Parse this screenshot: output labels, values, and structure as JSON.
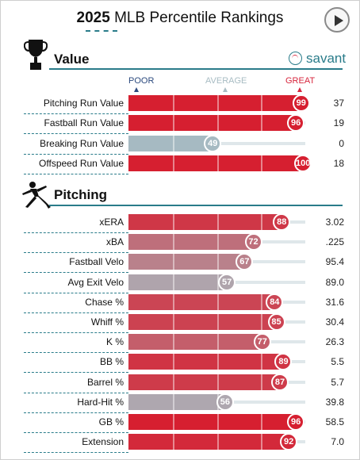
{
  "header": {
    "year": "2025",
    "title": "MLB Percentile Rankings"
  },
  "scale": {
    "poor": "POOR",
    "average": "AVERAGE",
    "great": "GREAT",
    "poor_color": "#2c4a7e",
    "average_color": "#a8bcc3",
    "great_color": "#d7263d"
  },
  "brand": {
    "name": "savant"
  },
  "value_section": {
    "title": "Value",
    "rows": [
      {
        "label": "Pitching Run Value",
        "percentile": 99,
        "value": "37"
      },
      {
        "label": "Fastball Run Value",
        "percentile": 96,
        "value": "19"
      },
      {
        "label": "Breaking Run Value",
        "percentile": 49,
        "value": "0"
      },
      {
        "label": "Offspeed Run Value",
        "percentile": 100,
        "value": "18"
      }
    ]
  },
  "pitching_section": {
    "title": "Pitching",
    "rows": [
      {
        "label": "xERA",
        "percentile": 88,
        "value": "3.02"
      },
      {
        "label": "xBA",
        "percentile": 72,
        "value": ".225"
      },
      {
        "label": "Fastball Velo",
        "percentile": 67,
        "value": "95.4"
      },
      {
        "label": "Avg Exit Velo",
        "percentile": 57,
        "value": "89.0"
      },
      {
        "label": "Chase %",
        "percentile": 84,
        "value": "31.6"
      },
      {
        "label": "Whiff %",
        "percentile": 85,
        "value": "30.4"
      },
      {
        "label": "K %",
        "percentile": 77,
        "value": "26.3"
      },
      {
        "label": "BB %",
        "percentile": 89,
        "value": "5.5"
      },
      {
        "label": "Barrel %",
        "percentile": 87,
        "value": "5.7"
      },
      {
        "label": "Hard-Hit %",
        "percentile": 56,
        "value": "39.8"
      },
      {
        "label": "GB %",
        "percentile": 96,
        "value": "58.5"
      },
      {
        "label": "Extension",
        "percentile": 92,
        "value": "7.0"
      }
    ]
  }
}
